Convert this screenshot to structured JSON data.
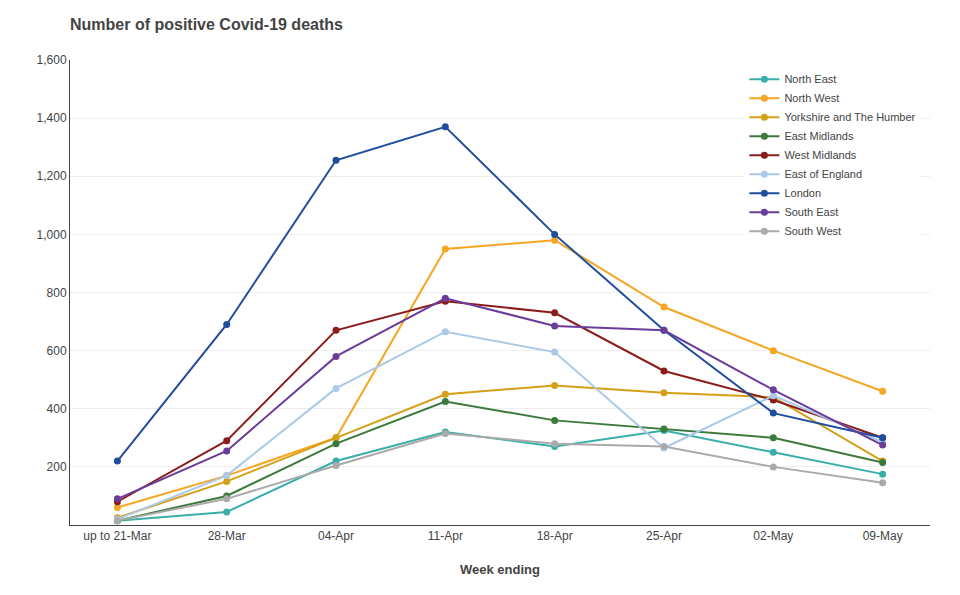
{
  "chart_data": {
    "type": "line",
    "title": "Number of positive Covid-19 deaths",
    "xlabel": "Week ending",
    "categories": [
      "up to 21-Mar",
      "28-Mar",
      "04-Apr",
      "11-Apr",
      "18-Apr",
      "25-Apr",
      "02-May",
      "09-May"
    ],
    "series": [
      {
        "name": "North East",
        "color": "#3aafa9",
        "values": [
          15,
          45,
          220,
          320,
          270,
          325,
          250,
          175
        ]
      },
      {
        "name": "North West",
        "color": "#f5a623",
        "values": [
          60,
          170,
          300,
          950,
          980,
          750,
          600,
          460
        ]
      },
      {
        "name": "Yorkshire and The Humber",
        "color": "#d4a017",
        "values": [
          25,
          150,
          300,
          450,
          480,
          455,
          440,
          220
        ]
      },
      {
        "name": "East Midlands",
        "color": "#3b7a3b",
        "values": [
          15,
          100,
          280,
          425,
          360,
          330,
          300,
          215
        ]
      },
      {
        "name": "West Midlands",
        "color": "#8b1c1c",
        "values": [
          80,
          290,
          670,
          770,
          730,
          530,
          430,
          300
        ]
      },
      {
        "name": "East of England",
        "color": "#aac8e8",
        "values": [
          20,
          170,
          470,
          665,
          595,
          265,
          445,
          285
        ]
      },
      {
        "name": "London",
        "color": "#1f4e9c",
        "values": [
          220,
          690,
          1255,
          1370,
          1000,
          670,
          385,
          300
        ]
      },
      {
        "name": "South East",
        "color": "#6a3d9a",
        "values": [
          90,
          255,
          580,
          780,
          685,
          670,
          465,
          275
        ]
      },
      {
        "name": "South West",
        "color": "#aaaaaa",
        "values": [
          15,
          90,
          205,
          315,
          280,
          270,
          200,
          145
        ]
      }
    ],
    "ylim": [
      0,
      1600
    ],
    "yticks": [
      200,
      400,
      600,
      800,
      {
        "value": 1000,
        "label": "1,000"
      },
      {
        "value": 1200,
        "label": "1,200"
      },
      {
        "value": 1400,
        "label": "1,400"
      },
      {
        "value": 1600,
        "label": "1,600"
      }
    ],
    "grid": true,
    "legend": "upper right",
    "marker": "circle",
    "line_style": "solid"
  }
}
